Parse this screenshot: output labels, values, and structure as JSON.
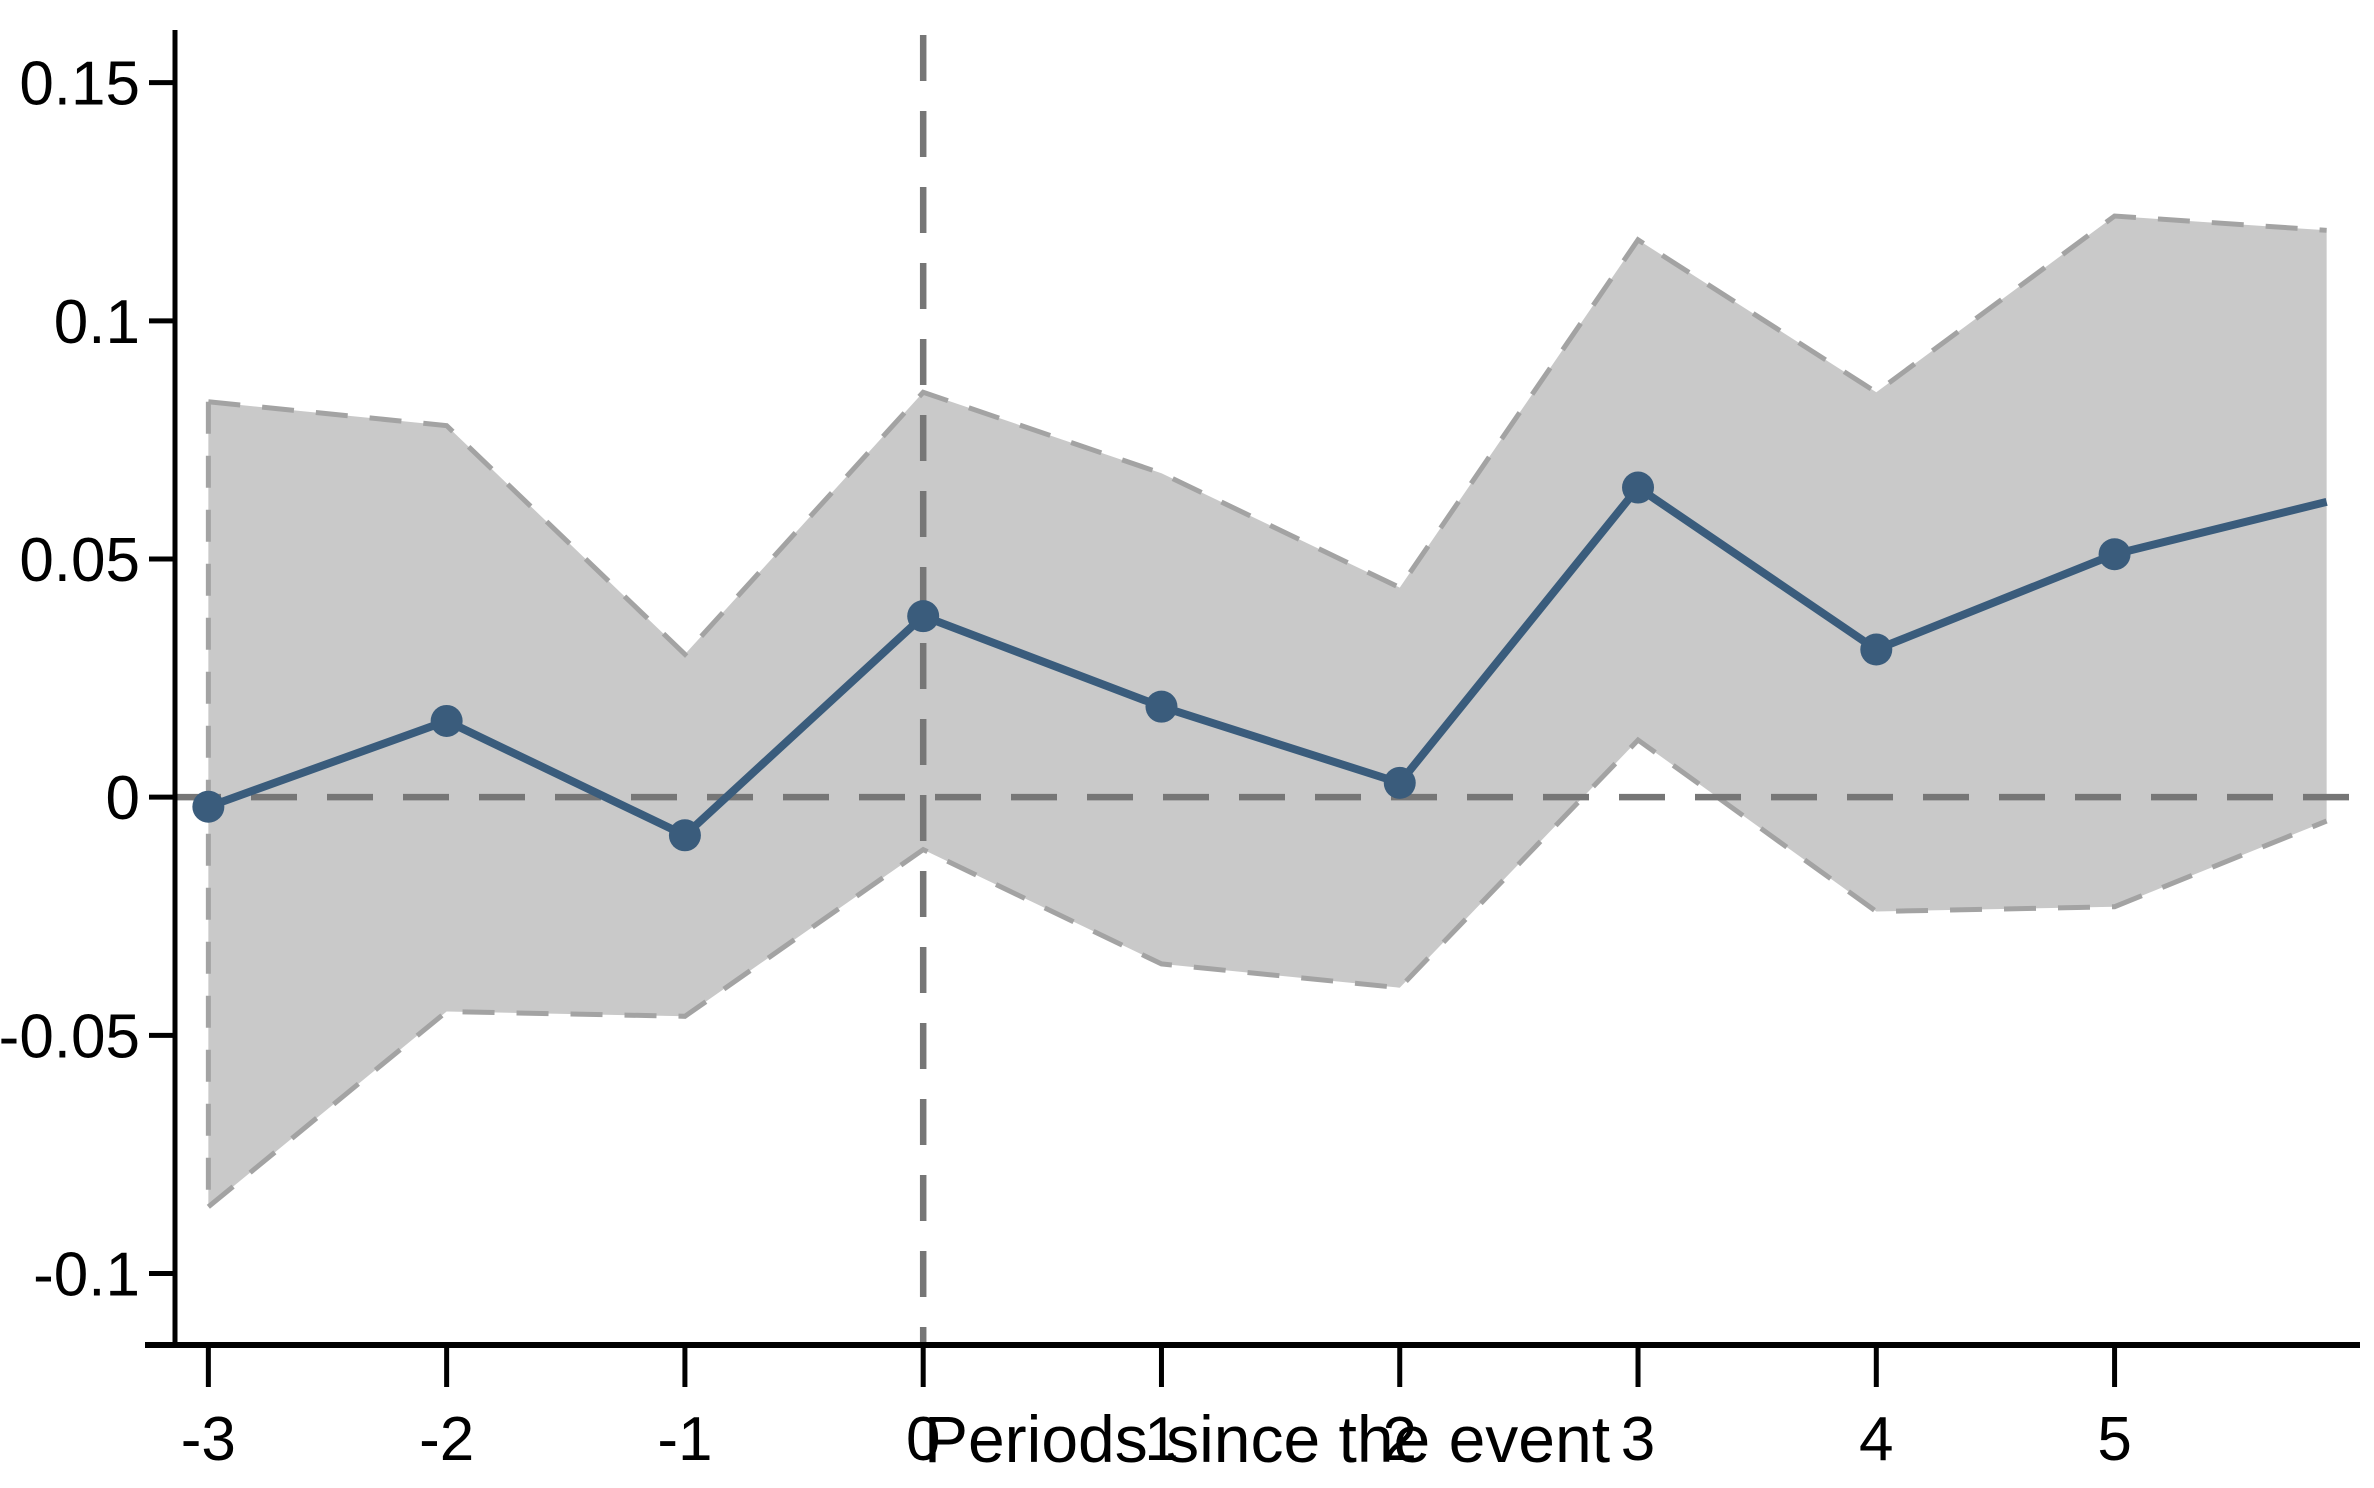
{
  "figure": {
    "background": "#ffffff",
    "description": "Event-study coefficient plot with 95% confidence band"
  },
  "chart_data": {
    "type": "line",
    "title": "",
    "xlabel": "Periods since the event",
    "ylabel": "",
    "grid": false,
    "legend": false,
    "xlim": [
      -3.14,
      6.03
    ],
    "ylim": [
      -0.115,
      0.16
    ],
    "x_tick_values": [
      -3,
      -2,
      -1,
      0,
      1,
      2,
      3,
      4,
      5
    ],
    "x_tick_labels": [
      "-3",
      "-2",
      "-1",
      "0",
      "1",
      "2",
      "3",
      "4",
      "5"
    ],
    "y_tick_values": [
      0.15,
      0.1,
      0.05,
      0,
      -0.05,
      -0.1
    ],
    "y_tick_labels": [
      "0.15",
      "0.1",
      "0.05",
      "0",
      "-0.05",
      "-0.1"
    ],
    "reference_lines": {
      "horizontal_y": 0,
      "vertical_x": 0
    },
    "series": [
      {
        "name": "point-estimate",
        "type": "line+markers",
        "x": [
          -3,
          -2,
          -1,
          0,
          1,
          2,
          3,
          4,
          5,
          5.89
        ],
        "y": [
          -0.002,
          0.016,
          -0.008,
          0.038,
          0.019,
          0.003,
          0.065,
          0.031,
          0.051,
          0.062
        ],
        "color": "#3a5c7c",
        "marker_radius": 16,
        "line_width": 8
      },
      {
        "name": "confidence-band-95",
        "type": "band",
        "x": [
          -3,
          -2,
          -1,
          0,
          1,
          2,
          3,
          4,
          5,
          5.89
        ],
        "upper": [
          0.083,
          0.078,
          0.03,
          0.085,
          0.068,
          0.044,
          0.117,
          0.085,
          0.122,
          0.119
        ],
        "lower": [
          -0.086,
          -0.045,
          -0.046,
          -0.011,
          -0.035,
          -0.04,
          0.012,
          -0.024,
          -0.023,
          -0.005
        ],
        "fill": "#c9c9c9",
        "border_color": "#a3a3a3",
        "border_width": 5,
        "border_dash": "32 22",
        "left_edge_dashed": true
      }
    ],
    "colors": {
      "axis": "#000000",
      "dashed_reference": "#767676",
      "tick_text": "#000000"
    },
    "reference_dash": "46 30",
    "reference_width": 6.5
  }
}
